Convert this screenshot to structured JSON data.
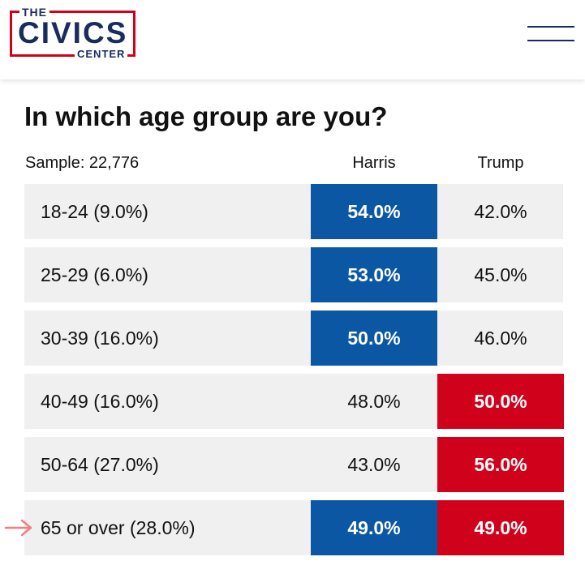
{
  "header": {
    "logo": {
      "the": "THE",
      "civics": "CIVICS",
      "center": "CENTER"
    },
    "menu_icon": "hamburger-menu-icon"
  },
  "poll": {
    "title": "In which age group are you?",
    "sample_label": "Sample: 22,776",
    "columns": {
      "harris": "Harris",
      "trump": "Trump"
    },
    "rows": [
      {
        "label": "18-24 (9.0%)",
        "harris": "54.0%",
        "trump": "42.0%",
        "winner": "harris"
      },
      {
        "label": "25-29 (6.0%)",
        "harris": "53.0%",
        "trump": "45.0%",
        "winner": "harris"
      },
      {
        "label": "30-39 (16.0%)",
        "harris": "50.0%",
        "trump": "46.0%",
        "winner": "harris"
      },
      {
        "label": "40-49 (16.0%)",
        "harris": "48.0%",
        "trump": "50.0%",
        "winner": "trump"
      },
      {
        "label": "50-64 (27.0%)",
        "harris": "43.0%",
        "trump": "56.0%",
        "winner": "trump"
      },
      {
        "label": "65 or over (28.0%)",
        "harris": "49.0%",
        "trump": "49.0%",
        "winner": "both"
      }
    ],
    "highlight_arrow_icon": "right-arrow-icon"
  },
  "colors": {
    "harris": "#0b57a4",
    "trump": "#d0021b",
    "brand_navy": "#1a2b5e",
    "row_bg": "#f0f0f0",
    "arrow": "#f08080"
  }
}
